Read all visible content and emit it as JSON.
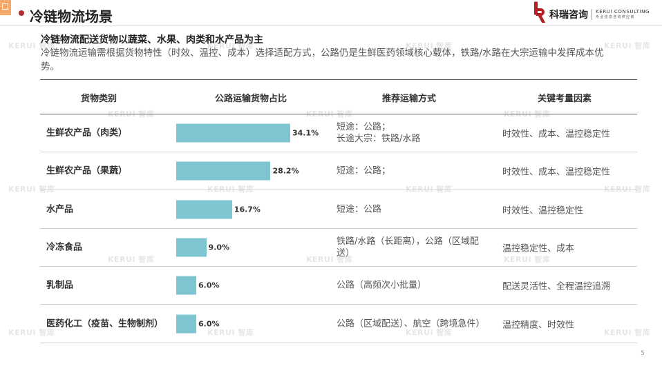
{
  "header": {
    "title": "冷链物流场景",
    "logo_cn": "科瑞咨询",
    "logo_en": "KERUI CONSULTING",
    "logo_tagline": "专业信息咨询供应商"
  },
  "watermark": {
    "brand": "KERUI",
    "suffix": "智库"
  },
  "headline": "冷链物流配送货物以蔬菜、水果、肉类和水产品为主",
  "intro": "冷链物流运输需根据货物特性（时效、温控、成本）选择适配方式，公路仍是生鲜医药领域核心载体，铁路/水路在大宗运输中发挥成本优势。",
  "table": {
    "headers": [
      "货物类别",
      "公路运输货物占比",
      "推荐运输方式",
      "关键考量因素"
    ],
    "rows": [
      {
        "category": "生鲜农产品（肉类）",
        "share": 34.1,
        "share_label": "34.1%",
        "mode": "短途：公路；\n长途大宗：铁路/水路",
        "factors": "时效性、成本、温控稳定性"
      },
      {
        "category": "生鲜农产品（果蔬）",
        "share": 28.2,
        "share_label": "28.2%",
        "mode": "短途：公路；",
        "factors": "时效性、成本、温控稳定性"
      },
      {
        "category": "水产品",
        "share": 16.7,
        "share_label": "16.7%",
        "mode": "短途：公路",
        "factors": "时效性、温控稳定性"
      },
      {
        "category": "冷冻食品",
        "share": 9.0,
        "share_label": "9.0%",
        "mode": "铁路/水路（长距离），公路（区域配送）",
        "factors": "温控稳定性、成本"
      },
      {
        "category": "乳制品",
        "share": 6.0,
        "share_label": "6.0%",
        "mode": "公路（高频次小批量）",
        "factors": "配送灵活性、全程温控追溯"
      },
      {
        "category": "医药化工（疫苗、生物制剂）",
        "share": 6.0,
        "share_label": "6.0%",
        "mode": "公路（区域配送）、航空（跨境急件）",
        "factors": "温控精度、时效性"
      }
    ]
  },
  "page_number": "5",
  "colors": {
    "accent": "#b52a2a",
    "bar": "#7fc4d1",
    "corner_tab": "#f4a86a"
  }
}
